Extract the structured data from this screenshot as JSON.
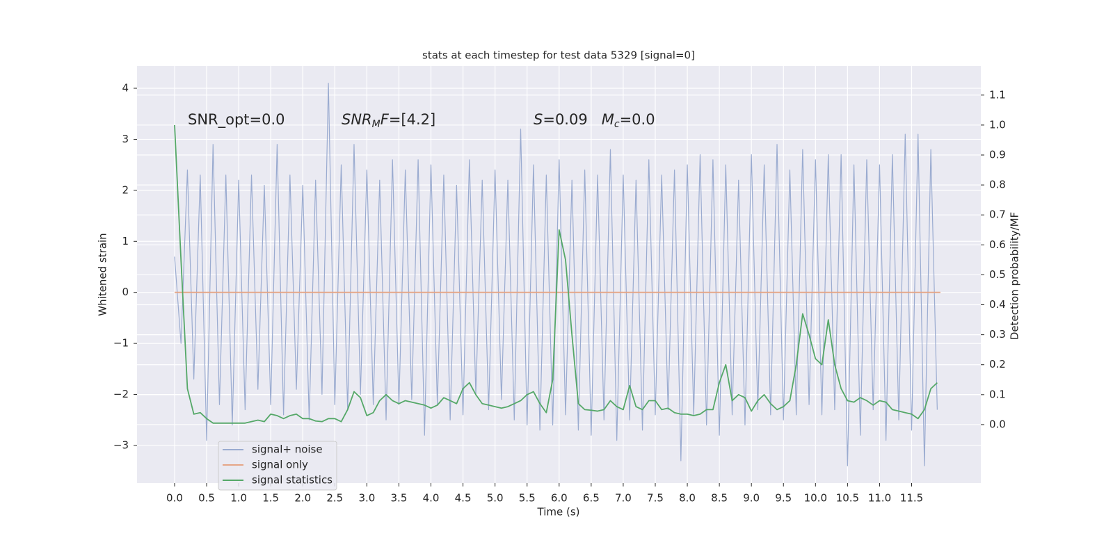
{
  "chart_data": {
    "type": "line",
    "title": "stats at each timestep for test data 5329 [signal=0]",
    "xlabel": "Time (s)",
    "ylabel": "Whitened strain",
    "y2label": "Detection probability/MF",
    "xlim": [
      -0.586,
      12.58
    ],
    "ylim": [
      -3.736,
      4.436
    ],
    "y2lim": [
      -0.195,
      1.197
    ],
    "xticks": [
      {
        "value": 0,
        "label": "0.0"
      },
      {
        "value": 0.5,
        "label": "0.5"
      },
      {
        "value": 1,
        "label": "1.0"
      },
      {
        "value": 1.5,
        "label": "1.5"
      },
      {
        "value": 2,
        "label": "2.0"
      },
      {
        "value": 2.5,
        "label": "2.5"
      },
      {
        "value": 3,
        "label": "3.0"
      },
      {
        "value": 3.5,
        "label": "3.5"
      },
      {
        "value": 4,
        "label": "4.0"
      },
      {
        "value": 4.5,
        "label": "4.5"
      },
      {
        "value": 5,
        "label": "5.0"
      },
      {
        "value": 5.5,
        "label": "5.5"
      },
      {
        "value": 6,
        "label": "6.0"
      },
      {
        "value": 6.5,
        "label": "6.5"
      },
      {
        "value": 7,
        "label": "7.0"
      },
      {
        "value": 7.5,
        "label": "7.5"
      },
      {
        "value": 8,
        "label": "8.0"
      },
      {
        "value": 8.5,
        "label": "8.5"
      },
      {
        "value": 9,
        "label": "9.0"
      },
      {
        "value": 9.5,
        "label": "9.5"
      },
      {
        "value": 10,
        "label": "10.0"
      },
      {
        "value": 10.5,
        "label": "10.5"
      },
      {
        "value": 11,
        "label": "11.0"
      },
      {
        "value": 11.5,
        "label": "11.5"
      }
    ],
    "yticks": [
      {
        "value": -3,
        "label": "−3"
      },
      {
        "value": -2,
        "label": "−2"
      },
      {
        "value": -1,
        "label": "−1"
      },
      0,
      1,
      2,
      3,
      4
    ],
    "y2ticks": [
      {
        "value": 0,
        "label": "0.0"
      },
      {
        "value": 0.1,
        "label": "0.1"
      },
      {
        "value": 0.2,
        "label": "0.2"
      },
      {
        "value": 0.3,
        "label": "0.3"
      },
      {
        "value": 0.4,
        "label": "0.4"
      },
      {
        "value": 0.5,
        "label": "0.5"
      },
      {
        "value": 0.6,
        "label": "0.6"
      },
      {
        "value": 0.7,
        "label": "0.7"
      },
      {
        "value": 0.8,
        "label": "0.8"
      },
      {
        "value": 0.9,
        "label": "0.9"
      },
      {
        "value": 1,
        "label": "1.0"
      },
      {
        "value": 1.1,
        "label": "1.1"
      }
    ],
    "grid": true,
    "legend": "lower left",
    "annotations": [
      [
        {
          "t": "SNR_opt=0.0"
        }
      ],
      [
        {
          "t": "SNR",
          "style": "italic"
        },
        {
          "t": "M",
          "style": "sub"
        },
        {
          "t": "F",
          "style": "italic"
        },
        {
          "t": "=[4.2]"
        }
      ],
      [
        {
          "t": "S",
          "style": "italic"
        },
        {
          "t": "=0.09   "
        },
        {
          "t": "M",
          "style": "italic"
        },
        {
          "t": "c",
          "style": "sub"
        },
        {
          "t": "=0.0"
        }
      ]
    ],
    "x": [
      0,
      0.1,
      0.2,
      0.3,
      0.4,
      0.5,
      0.6,
      0.7,
      0.8,
      0.9,
      1,
      1.1,
      1.2,
      1.3,
      1.4,
      1.5,
      1.6,
      1.7,
      1.8,
      1.9,
      2,
      2.1,
      2.2,
      2.3,
      2.4,
      2.5,
      2.6,
      2.7,
      2.8,
      2.9,
      3,
      3.1,
      3.2,
      3.3,
      3.4,
      3.5,
      3.6,
      3.7,
      3.8,
      3.9,
      4,
      4.1,
      4.2,
      4.3,
      4.4,
      4.5,
      4.6,
      4.7,
      4.8,
      4.9,
      5,
      5.1,
      5.2,
      5.3,
      5.4,
      5.5,
      5.6,
      5.7,
      5.8,
      5.9,
      6,
      6.1,
      6.2,
      6.3,
      6.4,
      6.5,
      6.6,
      6.7,
      6.8,
      6.9,
      7,
      7.1,
      7.2,
      7.3,
      7.4,
      7.5,
      7.6,
      7.7,
      7.8,
      7.9,
      8,
      8.1,
      8.2,
      8.3,
      8.4,
      8.5,
      8.6,
      8.7,
      8.8,
      8.9,
      9,
      9.1,
      9.2,
      9.3,
      9.4,
      9.5,
      9.6,
      9.7,
      9.8,
      9.9,
      10,
      10.1,
      10.2,
      10.3,
      10.4,
      10.5,
      10.6,
      10.7,
      10.8,
      10.9,
      11,
      11.1,
      11.2,
      11.3,
      11.4,
      11.5,
      11.6,
      11.7,
      11.8,
      11.9
    ],
    "series": [
      {
        "name": "signal+ noise",
        "color": "#9aabd0",
        "values": [
          0.7,
          -1.0,
          2.4,
          -1.7,
          2.3,
          -2.9,
          2.9,
          -2.2,
          2.3,
          -2.6,
          2.2,
          -2.3,
          2.3,
          -1.9,
          2.1,
          -2.2,
          2.9,
          -2.4,
          2.3,
          -1.9,
          2.1,
          -2.5,
          2.2,
          -2.0,
          4.1,
          -2.2,
          2.5,
          -2.3,
          2.9,
          -2.0,
          2.4,
          -2.2,
          2.2,
          -2.5,
          2.6,
          -2.2,
          2.4,
          -2.1,
          2.6,
          -2.8,
          2.5,
          -2.2,
          2.3,
          -2.5,
          2.1,
          -2.4,
          2.6,
          -2.0,
          2.2,
          -2.3,
          2.4,
          -2.1,
          2.2,
          -2.5,
          3.2,
          -2.6,
          2.5,
          -2.7,
          2.3,
          -2.6,
          2.6,
          -2.4,
          2.2,
          -2.7,
          2.4,
          -2.8,
          2.3,
          -2.5,
          2.8,
          -2.9,
          2.3,
          -2.5,
          2.2,
          -2.7,
          2.6,
          -2.4,
          2.3,
          -2.3,
          2.4,
          -3.3,
          2.5,
          -2.4,
          2.7,
          -2.6,
          2.6,
          -2.8,
          2.5,
          -2.4,
          2.2,
          -2.6,
          2.7,
          -2.3,
          2.5,
          -2.4,
          2.9,
          -2.5,
          2.4,
          -2.4,
          2.8,
          -2.2,
          2.6,
          -2.4,
          2.7,
          -2.3,
          2.7,
          -3.4,
          2.5,
          -2.8,
          2.6,
          -2.3,
          2.5,
          -2.9,
          2.7,
          -2.5,
          3.1,
          -2.7,
          3.1,
          -3.4,
          2.8,
          -2.3
        ]
      },
      {
        "name": "signal only",
        "color": "#e5a586",
        "x": [
          0,
          11.95
        ],
        "values": [
          0,
          0
        ]
      },
      {
        "name": "signal statistics",
        "color": "#55a868",
        "axis": "y2",
        "values": [
          1.0,
          0.55,
          0.12,
          0.035,
          0.04,
          0.02,
          0.005,
          0.005,
          0.005,
          0.005,
          0.005,
          0.005,
          0.01,
          0.015,
          0.01,
          0.035,
          0.03,
          0.02,
          0.03,
          0.035,
          0.02,
          0.02,
          0.012,
          0.01,
          0.02,
          0.02,
          0.01,
          0.05,
          0.11,
          0.09,
          0.03,
          0.04,
          0.08,
          0.1,
          0.08,
          0.07,
          0.08,
          0.075,
          0.07,
          0.065,
          0.055,
          0.065,
          0.09,
          0.08,
          0.07,
          0.12,
          0.14,
          0.1,
          0.07,
          0.065,
          0.06,
          0.055,
          0.06,
          0.07,
          0.08,
          0.1,
          0.11,
          0.07,
          0.04,
          0.15,
          0.65,
          0.55,
          0.3,
          0.07,
          0.05,
          0.048,
          0.045,
          0.05,
          0.08,
          0.06,
          0.05,
          0.13,
          0.06,
          0.05,
          0.08,
          0.08,
          0.05,
          0.055,
          0.04,
          0.035,
          0.035,
          0.03,
          0.035,
          0.05,
          0.05,
          0.14,
          0.2,
          0.08,
          0.1,
          0.09,
          0.045,
          0.08,
          0.1,
          0.07,
          0.05,
          0.06,
          0.08,
          0.2,
          0.37,
          0.3,
          0.22,
          0.2,
          0.35,
          0.2,
          0.12,
          0.08,
          0.075,
          0.09,
          0.08,
          0.065,
          0.08,
          0.075,
          0.05,
          0.045,
          0.04,
          0.035,
          0.02,
          0.05,
          0.12,
          0.14
        ]
      }
    ]
  }
}
